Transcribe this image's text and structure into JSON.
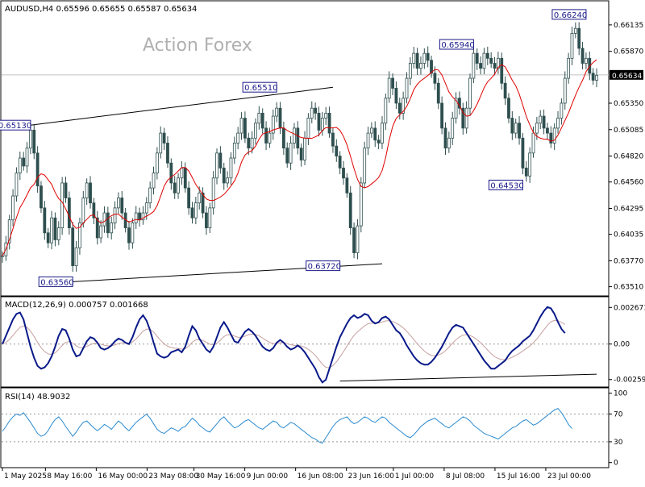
{
  "chart_data": {
    "type": "candlestick",
    "symbol_line": "AUDUSD,H4  0.65596 0.65655 0.65587 0.65634",
    "watermark": "Action Forex",
    "colors": {
      "candles": "#2f4f4f",
      "moving_average": "#e00000",
      "trendline": "#000000",
      "price_line": "#c0c0c0",
      "annotation": "#1a1a8a",
      "macd_line": "#0a1a8a",
      "macd_signal": "#c8a0a0",
      "rsi_line": "#2a8ad0",
      "current_price_bg": "#000000",
      "current_price_text": "#ffffff"
    },
    "main_panel": {
      "y_axis_ticks": [
        "0.66135",
        "0.65870",
        "0.65634",
        "0.65350",
        "0.65085",
        "0.64820",
        "0.64560",
        "0.64295",
        "0.64035",
        "0.63770",
        "0.63510"
      ],
      "tick_values": [
        0.66135,
        0.6587,
        0.6535,
        0.65085,
        0.6482,
        0.6456,
        0.64295,
        0.64035,
        0.6377,
        0.6351
      ],
      "current_price": 0.65634,
      "ylim": [
        0.6345,
        0.6632
      ],
      "annotations": [
        {
          "label": "0.65130",
          "index": 8,
          "value": 0.6513,
          "side": "left"
        },
        {
          "label": "0.65510",
          "index": 78,
          "value": 0.6551,
          "side": "left"
        },
        {
          "label": "0.63560",
          "index": 20,
          "value": 0.6356,
          "side": "left"
        },
        {
          "label": "0.63720",
          "index": 96,
          "value": 0.6372,
          "side": "left"
        },
        {
          "label": "0.65940",
          "index": 134,
          "value": 0.6594,
          "side": "left"
        },
        {
          "label": "0.64530",
          "index": 148,
          "value": 0.6453,
          "side": "left"
        },
        {
          "label": "0.66240",
          "index": 166,
          "value": 0.6624,
          "side": "left"
        }
      ],
      "trendlines": [
        {
          "from": [
            8,
            0.6513
          ],
          "to": [
            94,
            0.6551
          ]
        },
        {
          "from": [
            20,
            0.6356
          ],
          "to": [
            108,
            0.6374
          ]
        }
      ],
      "close_series": [
        0.6382,
        0.6395,
        0.6418,
        0.6442,
        0.6465,
        0.648,
        0.6472,
        0.649,
        0.6508,
        0.6485,
        0.6452,
        0.643,
        0.6405,
        0.6395,
        0.642,
        0.6398,
        0.641,
        0.6455,
        0.644,
        0.641,
        0.6372,
        0.639,
        0.6415,
        0.644,
        0.6455,
        0.6435,
        0.642,
        0.64,
        0.6412,
        0.6425,
        0.6405,
        0.6415,
        0.643,
        0.644,
        0.6425,
        0.641,
        0.6395,
        0.6415,
        0.6425,
        0.6418,
        0.6425,
        0.6435,
        0.645,
        0.6465,
        0.6485,
        0.6505,
        0.6495,
        0.6475,
        0.6455,
        0.6445,
        0.646,
        0.647,
        0.645,
        0.643,
        0.642,
        0.6435,
        0.6445,
        0.6425,
        0.641,
        0.643,
        0.646,
        0.6485,
        0.647,
        0.6455,
        0.646,
        0.648,
        0.6495,
        0.6505,
        0.652,
        0.65,
        0.649,
        0.65,
        0.6515,
        0.6525,
        0.651,
        0.6495,
        0.6505,
        0.6522,
        0.653,
        0.651,
        0.649,
        0.6475,
        0.6495,
        0.651,
        0.649,
        0.6478,
        0.65,
        0.652,
        0.653,
        0.6525,
        0.6508,
        0.652,
        0.6525,
        0.6505,
        0.6492,
        0.6482,
        0.647,
        0.646,
        0.6445,
        0.641,
        0.6385,
        0.6412,
        0.6455,
        0.649,
        0.6505,
        0.651,
        0.6498,
        0.6495,
        0.6515,
        0.654,
        0.656,
        0.655,
        0.6535,
        0.6525,
        0.654,
        0.656,
        0.6575,
        0.6585,
        0.657,
        0.6575,
        0.6585,
        0.6578,
        0.6565,
        0.6555,
        0.6535,
        0.651,
        0.649,
        0.65,
        0.652,
        0.654,
        0.653,
        0.651,
        0.653,
        0.656,
        0.6585,
        0.6575,
        0.657,
        0.6585,
        0.658,
        0.6575,
        0.657,
        0.658,
        0.6555,
        0.654,
        0.652,
        0.6505,
        0.6515,
        0.65,
        0.647,
        0.6462,
        0.6485,
        0.6505,
        0.6515,
        0.6522,
        0.651,
        0.6505,
        0.6495,
        0.651,
        0.652,
        0.6535,
        0.656,
        0.658,
        0.6605,
        0.661,
        0.659,
        0.6575,
        0.658,
        0.6565,
        0.6558,
        0.6563
      ]
    },
    "macd_panel": {
      "label": "MACD(12,26,9) 0.000757 0.001668",
      "y_axis_ticks": [
        "0.002671",
        "0.00",
        "-0.00259"
      ],
      "tick_values": [
        0.002671,
        0.0,
        -0.00259
      ],
      "ylim": [
        -0.0029,
        0.0031
      ],
      "macd_series": [
        0.0,
        0.0006,
        0.0012,
        0.0018,
        0.0022,
        0.0023,
        0.0018,
        0.0008,
        -0.0002,
        -0.001,
        -0.0016,
        -0.0018,
        -0.0017,
        -0.0014,
        -0.0009,
        -0.0002,
        0.0006,
        0.0011,
        0.001,
        0.0004,
        -0.0004,
        -0.0009,
        -0.0008,
        -0.0003,
        0.0002,
        0.0005,
        0.0004,
        0.0001,
        -0.0003,
        -0.0004,
        -0.0003,
        -0.0001,
        0.0002,
        0.0004,
        0.0003,
        0.0001,
        0.0,
        0.0005,
        0.0012,
        0.0018,
        0.0021,
        0.0017,
        0.001,
        0.0001,
        -0.0007,
        -0.0009,
        -0.001,
        -0.0009,
        -0.0006,
        -0.0005,
        -0.0004,
        -0.0006,
        -0.0002,
        0.0006,
        0.0013,
        0.001,
        0.0004,
        0.0,
        -0.0004,
        -0.0006,
        -0.0002,
        0.0005,
        0.0012,
        0.0016,
        0.0012,
        0.0007,
        0.0002,
        0.0001,
        0.0005,
        0.0009,
        0.0011,
        0.0009,
        0.0006,
        0.0002,
        -0.0002,
        -0.0004,
        -0.0005,
        -0.0003,
        0.0001,
        0.0003,
        0.0001,
        -0.0002,
        -0.0004,
        -0.0003,
        -0.0001,
        -0.0003,
        -0.0006,
        -0.001,
        -0.0014,
        -0.0018,
        -0.0024,
        -0.0028,
        -0.0026,
        -0.0018,
        -0.001,
        -0.0002,
        0.0005,
        0.001,
        0.0015,
        0.0019,
        0.0021,
        0.0019,
        0.002,
        0.0022,
        0.0021,
        0.0017,
        0.0015,
        0.0016,
        0.0019,
        0.002,
        0.0018,
        0.0014,
        0.001,
        0.0008,
        0.0004,
        -0.0001,
        -0.0005,
        -0.0009,
        -0.0012,
        -0.0014,
        -0.0015,
        -0.0015,
        -0.0013,
        -0.001,
        -0.0006,
        -0.0002,
        0.0003,
        0.0008,
        0.0012,
        0.0014,
        0.0013,
        0.0012,
        0.0008,
        0.0004,
        0.0,
        -0.0004,
        -0.0008,
        -0.0012,
        -0.0015,
        -0.0018,
        -0.0018,
        -0.0016,
        -0.0014,
        -0.0012,
        -0.0008,
        -0.0005,
        -0.0003,
        -0.0001,
        0.0002,
        0.0004,
        0.0006,
        0.001,
        0.0015,
        0.002,
        0.0024,
        0.0027,
        0.0026,
        0.0022,
        0.0016,
        0.0011,
        0.0008
      ]
    },
    "rsi_panel": {
      "label": "RSI(14) 48.9032",
      "y_axis_ticks": [
        "100",
        "70",
        "30",
        "0"
      ],
      "tick_values": [
        100,
        70,
        30,
        0
      ],
      "ylim": [
        -5,
        102
      ],
      "rsi_series": [
        45,
        52,
        60,
        66,
        70,
        68,
        72,
        65,
        58,
        50,
        42,
        38,
        40,
        46,
        55,
        62,
        66,
        60,
        52,
        45,
        38,
        44,
        52,
        58,
        60,
        55,
        50,
        46,
        50,
        55,
        52,
        48,
        54,
        60,
        56,
        50,
        46,
        52,
        58,
        62,
        66,
        70,
        64,
        56,
        48,
        44,
        42,
        46,
        50,
        48,
        45,
        50,
        52,
        58,
        64,
        60,
        54,
        50,
        46,
        44,
        50,
        56,
        62,
        66,
        60,
        55,
        50,
        52,
        56,
        60,
        62,
        58,
        54,
        50,
        48,
        52,
        56,
        60,
        58,
        52,
        50,
        54,
        58,
        56,
        52,
        48,
        44,
        40,
        36,
        34,
        30,
        28,
        36,
        44,
        52,
        58,
        62,
        64,
        66,
        60,
        56,
        58,
        62,
        66,
        64,
        60,
        58,
        62,
        66,
        64,
        58,
        54,
        50,
        46,
        42,
        38,
        36,
        40,
        46,
        52,
        56,
        60,
        62,
        64,
        60,
        56,
        52,
        50,
        54,
        58,
        62,
        66,
        64,
        60,
        54,
        50,
        46,
        42,
        40,
        38,
        36,
        34,
        38,
        42,
        46,
        50,
        52,
        56,
        60,
        62,
        58,
        54,
        56,
        60,
        64,
        68,
        72,
        76,
        78,
        72,
        64,
        55,
        49
      ],
      "reference_levels": [
        70,
        30
      ]
    },
    "x_axis_labels": [
      {
        "label": "1 May 2025",
        "index": 0
      },
      {
        "label": "8 May 16:00",
        "index": 11
      },
      {
        "label": "16 May 00:00",
        "index": 24
      },
      {
        "label": "23 May 08:00",
        "index": 37
      },
      {
        "label": "30 May 16:00",
        "index": 49
      },
      {
        "label": "9 Jun 00:00",
        "index": 62
      },
      {
        "label": "16 Jun 08:00",
        "index": 75
      },
      {
        "label": "23 Jun 16:00",
        "index": 88
      },
      {
        "label": "1 Jul 00:00",
        "index": 100
      },
      {
        "label": "8 Jul 08:00",
        "index": 113
      },
      {
        "label": "15 Jul 16:00",
        "index": 126
      },
      {
        "label": "23 Jul 00:00",
        "index": 139
      }
    ]
  }
}
